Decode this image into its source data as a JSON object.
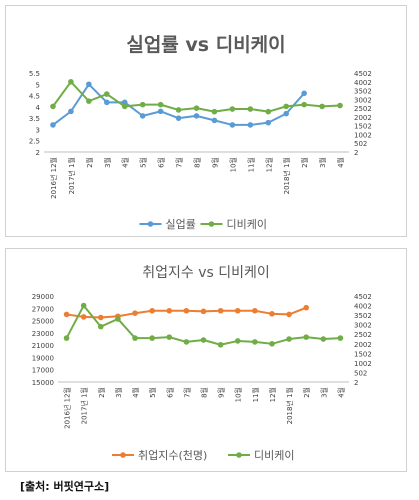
{
  "chart_data": [
    {
      "type": "line",
      "title": "실업률 vs 디비케이",
      "categories": [
        "2016년 12월",
        "2017년 1월",
        "2월",
        "3월",
        "4월",
        "5월",
        "6월",
        "7월",
        "8월",
        "9월",
        "10월",
        "11월",
        "12월",
        "2018년 1월",
        "2월",
        "3월",
        "4월"
      ],
      "ylim_left": [
        2,
        5.5
      ],
      "yticks_left": [
        "2",
        "2.5",
        "3",
        "3.5",
        "4",
        "4.5",
        "5",
        "5.5"
      ],
      "ylim_right": [
        2,
        4502
      ],
      "yticks_right": [
        "2",
        "502",
        "1002",
        "1502",
        "2002",
        "2502",
        "3002",
        "3502",
        "4002",
        "4502"
      ],
      "series": [
        {
          "name": "실업률",
          "axis": "left",
          "color": "#5b9bd5",
          "values": [
            3.2,
            3.8,
            5.0,
            4.2,
            4.2,
            3.6,
            3.8,
            3.5,
            3.6,
            3.4,
            3.2,
            3.2,
            3.3,
            3.7,
            4.6,
            null,
            null
          ]
        },
        {
          "name": "디비케이",
          "axis": "right",
          "color": "#70ad47",
          "values": [
            2600,
            4000,
            2900,
            3300,
            2600,
            2700,
            2700,
            2400,
            2500,
            2300,
            2450,
            2450,
            2300,
            2600,
            2700,
            2600,
            2650
          ]
        }
      ]
    },
    {
      "type": "line",
      "title": "취업지수 vs 디비케이",
      "categories": [
        "2016년 12월",
        "2017년 1월",
        "2월",
        "3월",
        "4월",
        "5월",
        "6월",
        "7월",
        "8월",
        "9월",
        "10월",
        "11월",
        "12월",
        "2018년 1월",
        "2월",
        "3월",
        "4월"
      ],
      "ylim_left": [
        15000,
        29000
      ],
      "yticks_left": [
        "15000",
        "17000",
        "19000",
        "21000",
        "23000",
        "25000",
        "27000",
        "29000"
      ],
      "ylim_right": [
        2,
        4502
      ],
      "yticks_right": [
        "2",
        "502",
        "1002",
        "1502",
        "2002",
        "2502",
        "3002",
        "3502",
        "4002",
        "4502"
      ],
      "series": [
        {
          "name": "취업지수(천명)",
          "axis": "left",
          "color": "#ed7d31",
          "values": [
            26000,
            25600,
            25500,
            25700,
            26200,
            26600,
            26600,
            26600,
            26500,
            26600,
            26600,
            26600,
            26100,
            26000,
            27100,
            null,
            null
          ]
        },
        {
          "name": "디비케이",
          "axis": "right",
          "color": "#70ad47",
          "values": [
            2300,
            4000,
            2900,
            3300,
            2300,
            2300,
            2350,
            2100,
            2200,
            1950,
            2150,
            2100,
            2000,
            2250,
            2350,
            2250,
            2300
          ]
        }
      ]
    }
  ],
  "source": "[출처: 버핏연구소]"
}
